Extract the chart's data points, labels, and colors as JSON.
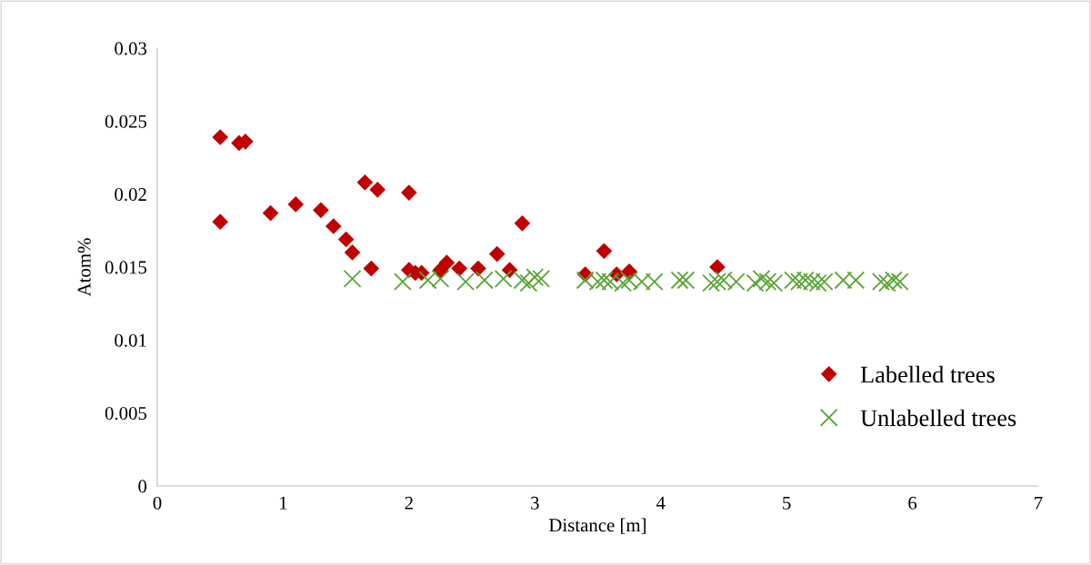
{
  "chart_data": {
    "type": "scatter",
    "xlabel": "Distance [m]",
    "ylabel": "Atom%",
    "xlim": [
      0,
      7
    ],
    "ylim": [
      0,
      0.03
    ],
    "xticks": [
      0,
      1,
      2,
      3,
      4,
      5,
      6,
      7
    ],
    "yticks": [
      0,
      0.005,
      0.01,
      0.015,
      0.02,
      0.025,
      0.03
    ],
    "grid": false,
    "legend": "right",
    "series": [
      {
        "name": "Labelled trees",
        "color": "#c00000",
        "marker": "diamond",
        "x": [
          0.5,
          0.65,
          0.7,
          0.5,
          0.9,
          1.1,
          1.3,
          1.4,
          1.5,
          1.55,
          1.65,
          1.7,
          1.75,
          2.0,
          2.0,
          2.05,
          2.1,
          2.2,
          2.25,
          2.3,
          2.4,
          2.55,
          2.7,
          2.8,
          2.9,
          3.4,
          3.55,
          3.65,
          3.75,
          4.45
        ],
        "values": [
          0.0239,
          0.0235,
          0.0236,
          0.0181,
          0.0187,
          0.0193,
          0.0189,
          0.0178,
          0.0169,
          0.016,
          0.0208,
          0.0149,
          0.0203,
          0.0201,
          0.0148,
          0.0146,
          0.0146,
          null,
          0.0148,
          0.0153,
          0.0149,
          0.0149,
          0.0159,
          0.0148,
          0.018,
          0.0145,
          0.0161,
          0.0145,
          0.0147,
          0.015
        ]
      },
      {
        "name": "Unlabelled trees",
        "color": "#5aa537",
        "marker": "cross",
        "x": [
          1.55,
          1.95,
          2.15,
          2.25,
          2.45,
          2.6,
          2.75,
          2.9,
          2.95,
          3.0,
          3.05,
          3.4,
          3.5,
          3.55,
          3.6,
          3.7,
          3.75,
          3.85,
          3.95,
          4.15,
          4.2,
          4.4,
          4.45,
          4.5,
          4.6,
          4.75,
          4.8,
          4.85,
          4.9,
          5.05,
          5.1,
          5.15,
          5.2,
          5.25,
          5.3,
          5.45,
          5.55,
          5.75,
          5.8,
          5.85,
          5.9
        ],
        "values": [
          0.0142,
          0.014,
          0.0141,
          0.0142,
          0.014,
          0.0141,
          0.0142,
          0.0141,
          0.0139,
          0.0143,
          0.0142,
          0.0141,
          0.014,
          0.0141,
          0.014,
          0.0139,
          0.0141,
          0.014,
          0.014,
          0.0141,
          0.0141,
          0.0139,
          0.014,
          0.0141,
          0.014,
          0.0139,
          0.0142,
          0.014,
          0.0139,
          0.0141,
          0.014,
          0.0141,
          0.014,
          0.0139,
          0.014,
          0.0141,
          0.0141,
          0.014,
          0.0139,
          0.0141,
          0.014
        ]
      }
    ]
  }
}
